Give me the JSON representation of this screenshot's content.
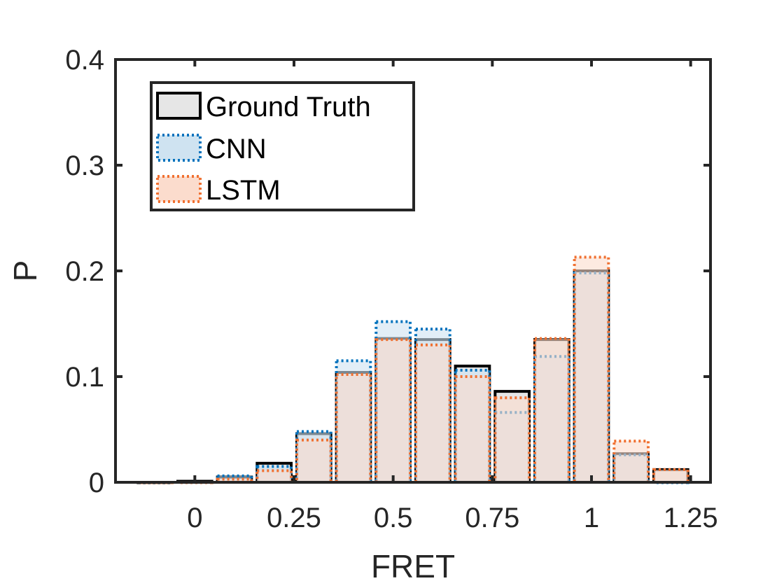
{
  "chart_data": {
    "type": "bar",
    "xlabel": "FRET",
    "ylabel": "P",
    "xlim": [
      -0.2,
      1.3
    ],
    "ylim": [
      0,
      0.4
    ],
    "xticks": [
      0,
      0.25,
      0.5,
      0.75,
      1,
      1.25
    ],
    "xtick_labels": [
      "0",
      "0.25",
      "0.5",
      "0.75",
      "1",
      "1.25"
    ],
    "yticks": [
      0,
      0.1,
      0.2,
      0.3,
      0.4
    ],
    "ytick_labels": [
      "0",
      "0.1",
      "0.2",
      "0.3",
      "0.4"
    ],
    "bin_width": 0.1,
    "bin_centers": [
      -0.1,
      0.0,
      0.1,
      0.2,
      0.3,
      0.4,
      0.5,
      0.6,
      0.7,
      0.8,
      0.9,
      1.0,
      1.1,
      1.2
    ],
    "legend_position": "top-left",
    "grid": false,
    "series": [
      {
        "name": "Ground Truth",
        "values": [
          0.0,
          0.001,
          0.005,
          0.018,
          0.046,
          0.104,
          0.136,
          0.135,
          0.11,
          0.086,
          0.135,
          0.2,
          0.027,
          0.012
        ],
        "edge": "#000000",
        "fill": "#e6e6e6",
        "dash": "solid"
      },
      {
        "name": "CNN",
        "values": [
          0.0,
          0.0,
          0.006,
          0.015,
          0.048,
          0.115,
          0.152,
          0.145,
          0.106,
          0.066,
          0.119,
          0.198,
          0.026,
          0.0
        ],
        "edge": "#0072bd",
        "fill": "#cfe3f1",
        "dash": "dotted"
      },
      {
        "name": "LSTM",
        "values": [
          0.0,
          0.0,
          0.003,
          0.011,
          0.04,
          0.102,
          0.135,
          0.13,
          0.1,
          0.08,
          0.136,
          0.213,
          0.039,
          0.012
        ],
        "edge": "#f07030",
        "fill": "#fbdccd",
        "dash": "dotted"
      }
    ]
  }
}
